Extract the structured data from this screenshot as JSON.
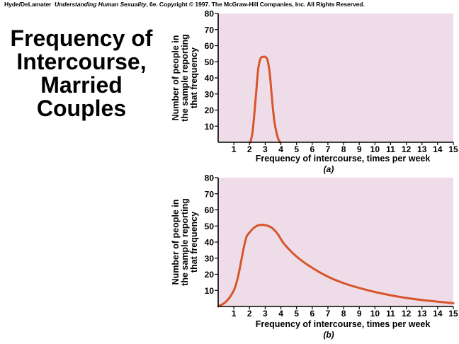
{
  "credit": {
    "authors": "Hyde/DeLamater",
    "book": "Understanding Human Sexuality",
    "rest": ", 6e.  Copyright © 1997. The McGraw-Hill Companies, Inc. All Rights Reserved."
  },
  "title_lines": [
    "Frequency of",
    "Intercourse,",
    "Married",
    "Couples"
  ],
  "colors": {
    "plot_bg": "#eedde8",
    "curve": "#d8542a",
    "axis": "#000000"
  },
  "chart_data": [
    {
      "type": "line",
      "panel_label": "(a)",
      "xlabel": "Frequency of intercourse, times per week",
      "ylabel_lines": [
        "Number of people in",
        "the sample reporting",
        "that frequency"
      ],
      "xlim": [
        0,
        15
      ],
      "ylim": [
        0,
        80
      ],
      "xticks": [
        1,
        2,
        3,
        4,
        5,
        6,
        7,
        8,
        9,
        10,
        11,
        12,
        13,
        14,
        15
      ],
      "yticks": [
        10,
        20,
        30,
        40,
        50,
        60,
        70,
        80
      ],
      "series": [
        {
          "x": [
            2.05,
            2.2,
            2.4,
            2.55,
            2.7,
            2.85,
            3.0,
            3.15,
            3.3,
            3.45,
            3.6,
            3.8,
            3.95
          ],
          "y": [
            0,
            7,
            28,
            45,
            52,
            53,
            53,
            51,
            42,
            25,
            12,
            3,
            0
          ]
        }
      ]
    },
    {
      "type": "line",
      "panel_label": "(b)",
      "xlabel": "Frequency of intercourse, times per week",
      "ylabel_lines": [
        "Number of people in",
        "the sample reporting",
        "that frequency"
      ],
      "xlim": [
        0,
        15
      ],
      "ylim": [
        0,
        80
      ],
      "xticks": [
        1,
        2,
        3,
        4,
        5,
        6,
        7,
        8,
        9,
        10,
        11,
        12,
        13,
        14,
        15
      ],
      "yticks": [
        10,
        20,
        30,
        40,
        50,
        60,
        70,
        80
      ],
      "series": [
        {
          "x": [
            0,
            0.5,
            1.0,
            1.3,
            1.6,
            1.8,
            2.0,
            2.3,
            2.6,
            3.0,
            3.4,
            3.8,
            4.2,
            5.0,
            6.0,
            7.0,
            8.0,
            9.0,
            10.0,
            11.0,
            12.0,
            13.0,
            14.0,
            15.0
          ],
          "y": [
            0,
            3,
            10,
            20,
            35,
            43,
            46,
            49,
            50.5,
            50.5,
            49,
            45,
            39,
            31,
            24,
            18.5,
            14.5,
            11.5,
            9,
            7,
            5.3,
            4,
            3,
            2
          ]
        }
      ]
    }
  ]
}
